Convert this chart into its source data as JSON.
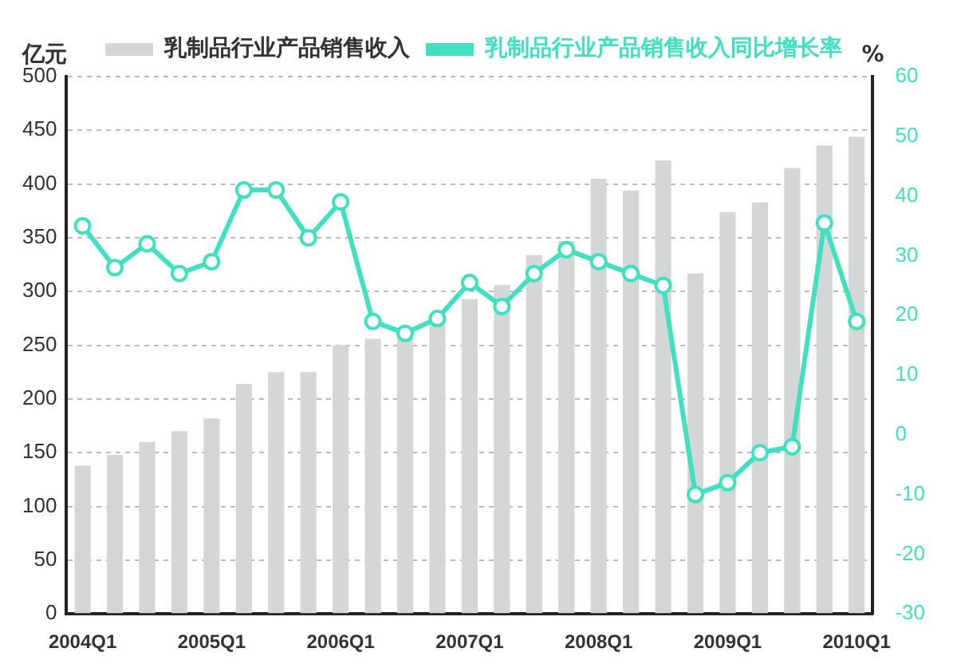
{
  "chart_data": {
    "type": "bar",
    "ylabel": "亿元",
    "y2label": "%",
    "categories": [
      "2004Q1",
      null,
      null,
      null,
      "2005Q1",
      null,
      null,
      null,
      "2006Q1",
      null,
      null,
      null,
      "2007Q1",
      null,
      null,
      null,
      "2008Q1",
      null,
      null,
      null,
      "2009Q1",
      null,
      null,
      null,
      "2010Q1"
    ],
    "series": [
      {
        "name": "乳制品行业产品销售收入",
        "color": "#d3d7d7",
        "values": [
          138,
          148,
          160,
          170,
          182,
          214,
          225,
          225,
          250,
          256,
          262,
          274,
          293,
          306,
          334,
          347,
          405,
          394,
          422,
          317,
          374,
          383,
          415,
          436,
          444
        ]
      },
      {
        "name": "乳制品行业产品销售收入同比增长率",
        "type": "line",
        "axis": "y2",
        "color": "#40e0c0",
        "marker": "circle",
        "values": [
          35,
          28,
          32,
          27,
          29,
          41,
          41,
          33,
          39,
          19,
          17,
          19.5,
          25.5,
          21.5,
          27,
          31,
          29,
          27,
          25,
          -10,
          -8,
          -3,
          -2,
          35.5,
          19
        ]
      }
    ],
    "ylim": [
      0,
      500
    ],
    "yticks": [
      0,
      50,
      100,
      150,
      200,
      250,
      300,
      350,
      400,
      450,
      500
    ],
    "y2lim": [
      -30,
      60
    ],
    "y2ticks": [
      -30,
      -20,
      -10,
      0,
      10,
      20,
      30,
      40,
      50,
      60
    ],
    "grid": "y",
    "legend": "top"
  }
}
